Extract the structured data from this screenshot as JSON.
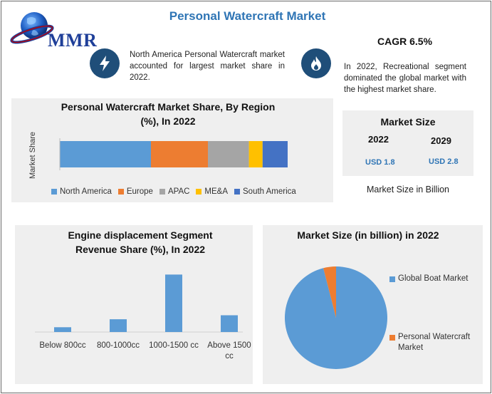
{
  "header": {
    "logo_text": "MMR",
    "title": "Personal Watercraft Market",
    "cagr": "CAGR 6.5%"
  },
  "notes": [
    {
      "icon": "lightning-icon",
      "text": "North America Personal Watercraft market accounted for largest market share in 2022."
    },
    {
      "icon": "flame-icon",
      "text": "In 2022, Recreational segment dominated the global market with the highest market share."
    }
  ],
  "market_size": {
    "title": "Market Size",
    "years": [
      "2022",
      "2029"
    ],
    "values": [
      "USD 1.8",
      "USD 2.8"
    ],
    "unit_note": "Market Size in Billion"
  },
  "colors": {
    "north_america": "#5b9bd5",
    "europe": "#ed7d31",
    "apac": "#a5a5a5",
    "mea": "#ffc000",
    "south_america": "#4472c4",
    "icon_bg": "#1f4e79",
    "title_blue": "#2f75b5"
  },
  "chart_data": [
    {
      "type": "bar",
      "orientation": "horizontal-stacked",
      "title": "Personal Watercraft Market Share, By Region (%), In 2022",
      "ylabel": "Market Share",
      "legend": "bottom",
      "series": [
        {
          "name": "North America",
          "values": [
            40
          ]
        },
        {
          "name": "Europe",
          "values": [
            25
          ]
        },
        {
          "name": "APAC",
          "values": [
            18
          ]
        },
        {
          "name": "ME&A",
          "values": [
            6
          ]
        },
        {
          "name": "South America",
          "values": [
            11
          ]
        }
      ]
    },
    {
      "type": "bar",
      "title": "Engine displacement Segment Revenue Share (%), In 2022",
      "categories": [
        "Below 800cc",
        "800-1000cc",
        "1000-1500 cc",
        "Above 1500 cc"
      ],
      "values": [
        6,
        16,
        72,
        21
      ],
      "ylim": [
        0,
        75
      ],
      "grid": false
    },
    {
      "type": "pie",
      "title": "Market Size (in billion) in 2022",
      "legend": "right",
      "labels": [
        "Global Boat Market",
        "Personal Watercraft Market"
      ],
      "values": [
        96,
        4
      ]
    }
  ]
}
